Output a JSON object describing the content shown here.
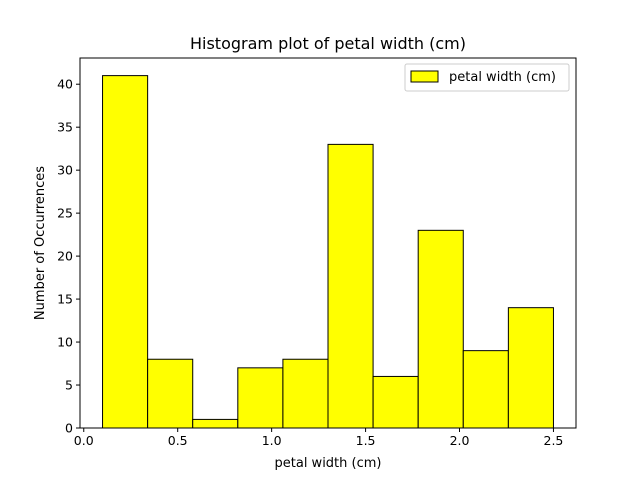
{
  "chart_data": {
    "type": "bar",
    "title": "Histogram plot of petal width (cm)",
    "xlabel": "petal width (cm)",
    "ylabel": "Number of Occurrences",
    "bin_edges": [
      0.1,
      0.34,
      0.58,
      0.82,
      1.06,
      1.3,
      1.54,
      1.78,
      2.02,
      2.26,
      2.5
    ],
    "values": [
      41,
      8,
      1,
      7,
      8,
      33,
      6,
      23,
      9,
      14
    ],
    "series": [
      {
        "name": "petal width (cm)",
        "values": [
          41,
          8,
          1,
          7,
          8,
          33,
          6,
          23,
          9,
          14
        ]
      }
    ],
    "xlim": [
      -0.02,
      2.62
    ],
    "ylim": [
      0,
      43.05
    ],
    "xticks": [
      0.0,
      0.5,
      1.0,
      1.5,
      2.0,
      2.5
    ],
    "xtick_labels": [
      "0.0",
      "0.5",
      "1.0",
      "1.5",
      "2.0",
      "2.5"
    ],
    "yticks": [
      0,
      5,
      10,
      15,
      20,
      25,
      30,
      35,
      40
    ],
    "ytick_labels": [
      "0",
      "5",
      "10",
      "15",
      "20",
      "25",
      "30",
      "35",
      "40"
    ],
    "grid": false,
    "legend_position": "top-right",
    "colors": {
      "bar_fill": "#ffff00",
      "bar_edge": "#000000",
      "axes": "#000000"
    }
  }
}
